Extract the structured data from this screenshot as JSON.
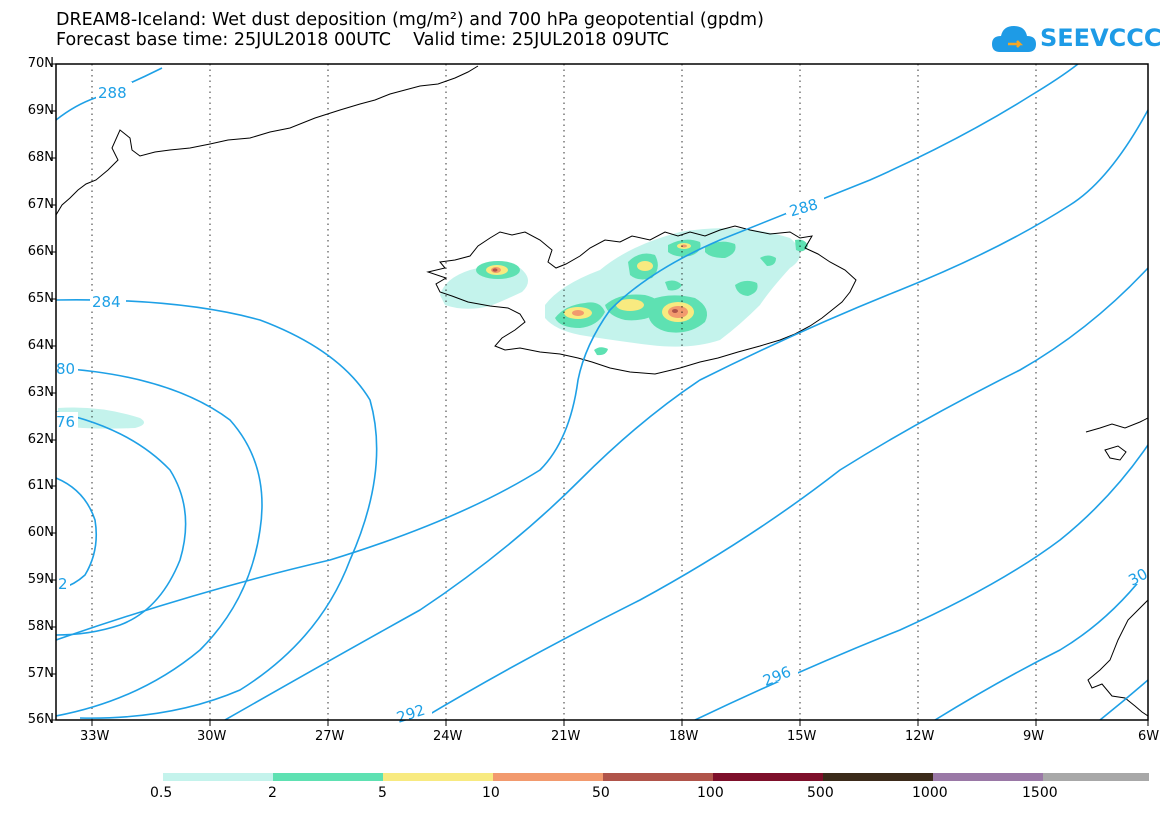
{
  "title": {
    "line1": "DREAM8-Iceland: Wet dust deposition (mg/m²) and 700 hPa geopotential (gpdm)",
    "line2": "Forecast base time: 25JUL2018 00UTC    Valid time: 25JUL2018 09UTC"
  },
  "logo": {
    "text": "SEEVCCC",
    "icon": "cloud-icon",
    "color": "#1e9be6"
  },
  "axes": {
    "lat_labels": [
      "70N",
      "69N",
      "68N",
      "67N",
      "66N",
      "65N",
      "64N",
      "63N",
      "62N",
      "61N",
      "60N",
      "59N",
      "58N",
      "57N",
      "56N"
    ],
    "lon_labels": [
      "33W",
      "30W",
      "27W",
      "24W",
      "21W",
      "18W",
      "15W",
      "12W",
      "9W",
      "6W"
    ]
  },
  "contours": {
    "color": "#1ea0e6",
    "labels": [
      "288",
      "284",
      "80",
      "76",
      "2",
      "288",
      "292",
      "296",
      "30"
    ]
  },
  "colorbar": {
    "colors": [
      "#c4f3ec",
      "#5ee1b2",
      "#f8ea80",
      "#f29a6e",
      "#b0544a",
      "#7e0f2a",
      "#3b2a1a",
      "#9a78a6",
      "#a8a8a8"
    ],
    "labels": [
      "0.5",
      "2",
      "5",
      "10",
      "50",
      "100",
      "500",
      "1000",
      "1500"
    ]
  }
}
